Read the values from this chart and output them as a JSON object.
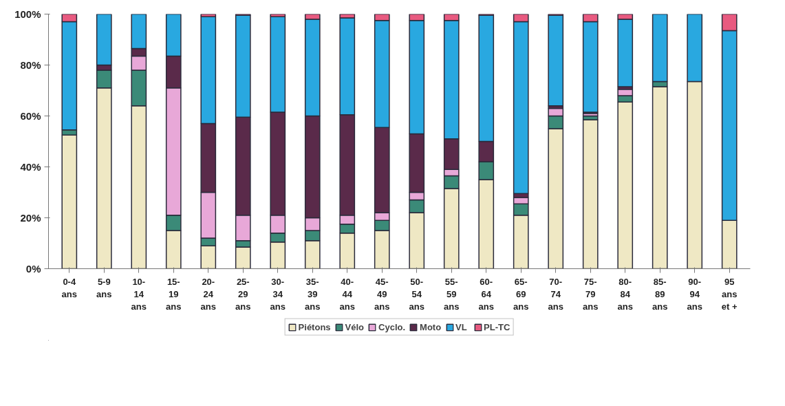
{
  "chart_data": {
    "type": "bar",
    "stacked": true,
    "categories": [
      "0-4\nans",
      "5-9\nans",
      "10-\n14\nans",
      "15-\n19\nans",
      "20-\n24\nans",
      "25-\n29\nans",
      "30-\n34\nans",
      "35-\n39\nans",
      "40-\n44\nans",
      "45-\n49\nans",
      "50-\n54\nans",
      "55-\n59\nans",
      "60-\n64\nans",
      "65-\n69\nans",
      "70-\n74\nans",
      "75-\n79\nans",
      "80-\n84\nans",
      "85-\n89\nans",
      "90-\n94\nans",
      "95\nans\net +"
    ],
    "series": [
      {
        "name": "Piétons",
        "color": "#efe8c4",
        "values": [
          52.5,
          71,
          64,
          15,
          9,
          8.5,
          10.5,
          11,
          14,
          15,
          22,
          31.5,
          35,
          21,
          55,
          58.5,
          65.5,
          71.5,
          73.5,
          19
        ]
      },
      {
        "name": "Vélo",
        "color": "#3b8a78",
        "values": [
          2,
          7,
          14,
          6,
          3,
          2.5,
          3.5,
          4,
          3.5,
          4,
          5,
          5,
          7,
          4.5,
          5,
          1.5,
          2.5,
          2,
          0,
          0
        ]
      },
      {
        "name": "Cyclo.",
        "color": "#e8a8d8",
        "values": [
          0,
          0,
          5.5,
          50,
          18,
          10,
          7,
          5,
          3.5,
          3,
          3,
          2.5,
          0,
          2.5,
          3,
          1,
          2.5,
          0,
          0,
          0
        ]
      },
      {
        "name": "Moto",
        "color": "#5a2a4a",
        "values": [
          0,
          2,
          3,
          12.5,
          27,
          38.5,
          40.5,
          40,
          39.5,
          33.5,
          23,
          12,
          8,
          1.5,
          1,
          0.5,
          1,
          0,
          0,
          0
        ]
      },
      {
        "name": "VL",
        "color": "#29a8e0",
        "values": [
          42.5,
          20,
          13.5,
          16.5,
          42,
          40,
          37.5,
          38,
          38,
          42,
          44.5,
          46.5,
          49.5,
          67.5,
          35.5,
          35.5,
          26.5,
          26.5,
          26.5,
          74.5
        ]
      },
      {
        "name": "PL-TC",
        "color": "#e85a80",
        "values": [
          3,
          0,
          0,
          0,
          1,
          0.5,
          1,
          2,
          1.5,
          2.5,
          2.5,
          2.5,
          0.5,
          3,
          0.5,
          3,
          2,
          0,
          0,
          6.5
        ]
      }
    ],
    "ylim": [
      0,
      100
    ],
    "yticks": [
      {
        "value": 0,
        "label": "0%"
      },
      {
        "value": 20,
        "label": "20%"
      },
      {
        "value": 40,
        "label": "40%"
      },
      {
        "value": 60,
        "label": "60%"
      },
      {
        "value": 80,
        "label": "80%"
      },
      {
        "value": 100,
        "label": "100%"
      }
    ],
    "legend": "bottom",
    "grid": false
  }
}
